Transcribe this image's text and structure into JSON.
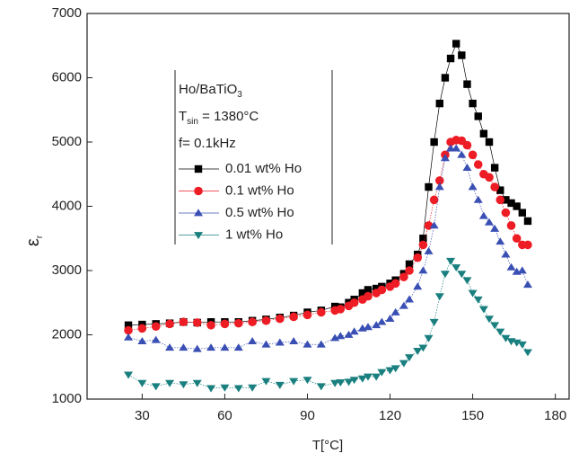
{
  "chart_data": {
    "type": "line",
    "xlabel": "T[°C]",
    "ylabel": {
      "text": "ε",
      "sub": "r"
    },
    "annotations": [
      {
        "text": "Ho/BaTiO",
        "sub": "3"
      },
      {
        "text": "T",
        "sub": "sin",
        "tail": " = 1380°C"
      },
      {
        "text": "f= 0.1kHz"
      }
    ],
    "x": [
      25,
      30,
      35,
      40,
      45,
      50,
      55,
      60,
      65,
      70,
      75,
      80,
      85,
      90,
      95,
      100,
      102,
      105,
      107,
      110,
      112,
      115,
      117,
      120,
      122,
      125,
      127,
      130,
      132,
      134,
      136,
      138,
      140,
      142,
      144,
      146,
      148,
      150,
      152,
      154,
      156,
      158,
      160,
      162,
      164,
      166,
      168,
      170
    ],
    "series": [
      {
        "name": "0.01 wt% Ho",
        "color": "#000000",
        "marker": "square",
        "values": [
          2150,
          2160,
          2170,
          2180,
          2200,
          2190,
          2200,
          2200,
          2200,
          2220,
          2240,
          2270,
          2300,
          2350,
          2380,
          2440,
          2430,
          2500,
          2550,
          2650,
          2700,
          2720,
          2750,
          2800,
          2850,
          2950,
          3100,
          3250,
          3500,
          4300,
          5000,
          5600,
          6000,
          6300,
          6530,
          6350,
          5900,
          5600,
          5400,
          5130,
          5000,
          4600,
          4250,
          4100,
          4050,
          4000,
          3900,
          3770
        ]
      },
      {
        "name": "0.1 wt% Ho",
        "color": "#ee1c24",
        "marker": "circle",
        "values": [
          2070,
          2100,
          2130,
          2170,
          2200,
          2190,
          2150,
          2170,
          2180,
          2200,
          2220,
          2250,
          2280,
          2310,
          2350,
          2380,
          2400,
          2450,
          2500,
          2550,
          2600,
          2650,
          2700,
          2750,
          2800,
          2900,
          3000,
          3200,
          3400,
          3700,
          4100,
          4400,
          4800,
          5000,
          5030,
          5020,
          4950,
          4800,
          4650,
          4500,
          4450,
          4300,
          4100,
          3900,
          3700,
          3500,
          3400,
          3400
        ]
      },
      {
        "name": "0.5 wt% Ho",
        "color": "#3a4fb3",
        "marker": "triangle-up",
        "values": [
          1960,
          1900,
          1920,
          1800,
          1800,
          1780,
          1800,
          1800,
          1800,
          1900,
          1850,
          1880,
          1900,
          1850,
          1850,
          1950,
          1980,
          2000,
          2050,
          2100,
          2120,
          2150,
          2200,
          2250,
          2350,
          2450,
          2550,
          2750,
          3000,
          3300,
          3700,
          4300,
          4750,
          4900,
          4900,
          4800,
          4600,
          4300,
          4100,
          3850,
          3750,
          3650,
          3450,
          3250,
          3050,
          2980,
          3000,
          2780
        ]
      },
      {
        "name": "1 wt% Ho",
        "color": "#1a7f7f",
        "marker": "triangle-down",
        "values": [
          1380,
          1250,
          1200,
          1250,
          1230,
          1250,
          1170,
          1180,
          1170,
          1180,
          1280,
          1220,
          1280,
          1300,
          1200,
          1250,
          1260,
          1270,
          1300,
          1320,
          1350,
          1350,
          1420,
          1450,
          1480,
          1560,
          1650,
          1750,
          1800,
          1950,
          2200,
          2600,
          2950,
          3150,
          3050,
          2950,
          2850,
          2650,
          2550,
          2400,
          2250,
          2150,
          2050,
          1950,
          1900,
          1880,
          1850,
          1730
        ]
      }
    ],
    "xlim": [
      10,
      185
    ],
    "xticks": [
      30,
      60,
      90,
      120,
      150,
      180
    ],
    "ylim": [
      1000,
      7000
    ],
    "yticks": [
      1000,
      2000,
      3000,
      4000,
      5000,
      6000,
      7000
    ]
  }
}
